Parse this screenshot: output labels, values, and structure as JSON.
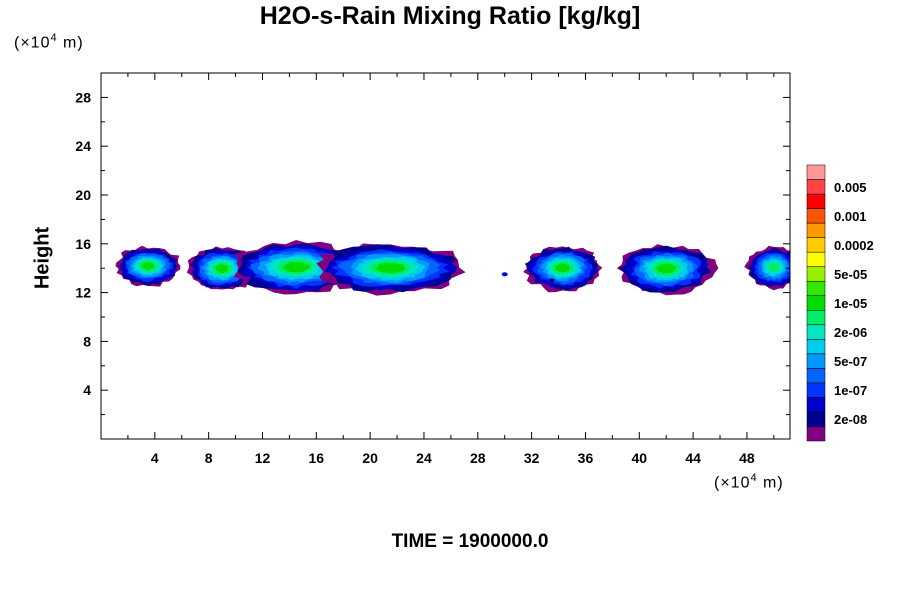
{
  "chart_data": {
    "type": "heatmap",
    "title": "H2O-s-Rain Mixing Ratio [kg/kg]",
    "ylabel": "Height",
    "x_unit_prefix": "(×10",
    "x_unit_exp": "4",
    "x_unit_suffix": " m)",
    "y_unit_prefix": "(×10",
    "y_unit_exp": "4",
    "y_unit_suffix": " m)",
    "xlim": [
      0,
      51.2
    ],
    "ylim": [
      0,
      30
    ],
    "x_ticks": [
      4,
      8,
      12,
      16,
      20,
      24,
      28,
      32,
      36,
      40,
      44,
      48
    ],
    "y_ticks": [
      4,
      8,
      12,
      16,
      20,
      24,
      28
    ],
    "grid": false,
    "legend_position": "right",
    "colorbar": {
      "colors": [
        "#800080",
        "#000090",
        "#0000cc",
        "#0033ff",
        "#0066ff",
        "#0099ff",
        "#00ccee",
        "#00e6c0",
        "#00ee66",
        "#00dd00",
        "#33e600",
        "#99ee00",
        "#ffff00",
        "#ffcc00",
        "#ff9900",
        "#ff5500",
        "#ff0000",
        "#ff4444",
        "#ff9999"
      ],
      "labels": [
        {
          "text": "2e-08",
          "index": 1
        },
        {
          "text": "1e-07",
          "index": 3
        },
        {
          "text": "5e-07",
          "index": 5
        },
        {
          "text": "2e-06",
          "index": 7
        },
        {
          "text": "1e-05",
          "index": 9
        },
        {
          "text": "5e-05",
          "index": 11
        },
        {
          "text": "0.0002",
          "index": 13
        },
        {
          "text": "0.001",
          "index": 15
        },
        {
          "text": "0.005",
          "index": 17
        }
      ]
    },
    "clouds": [
      {
        "x_center": 3.5,
        "x_halfwidth": 2.4,
        "y_bottom": 12.6,
        "y_top": 15.8,
        "peak_level": 9
      },
      {
        "x_center": 9.0,
        "x_halfwidth": 2.5,
        "y_bottom": 12.2,
        "y_top": 15.8,
        "peak_level": 9
      },
      {
        "x_center": 14.5,
        "x_halfwidth": 4.8,
        "y_bottom": 12.0,
        "y_top": 16.2,
        "peak_level": 9
      },
      {
        "x_center": 21.5,
        "x_halfwidth": 5.5,
        "y_bottom": 12.0,
        "y_top": 16.1,
        "peak_level": 9
      },
      {
        "x_center": 34.3,
        "x_halfwidth": 2.8,
        "y_bottom": 12.2,
        "y_top": 15.9,
        "peak_level": 9
      },
      {
        "x_center": 42.0,
        "x_halfwidth": 3.5,
        "y_bottom": 12.0,
        "y_top": 16.0,
        "peak_level": 9
      },
      {
        "x_center": 50.0,
        "x_halfwidth": 2.0,
        "y_bottom": 12.4,
        "y_top": 15.8,
        "peak_level": 8
      }
    ],
    "specks": [
      {
        "x": 30.0,
        "y": 13.5,
        "level": 2
      },
      {
        "x": 33.5,
        "y": 13.0,
        "level": 1
      }
    ]
  },
  "time_label": "TIME = 1900000.0"
}
